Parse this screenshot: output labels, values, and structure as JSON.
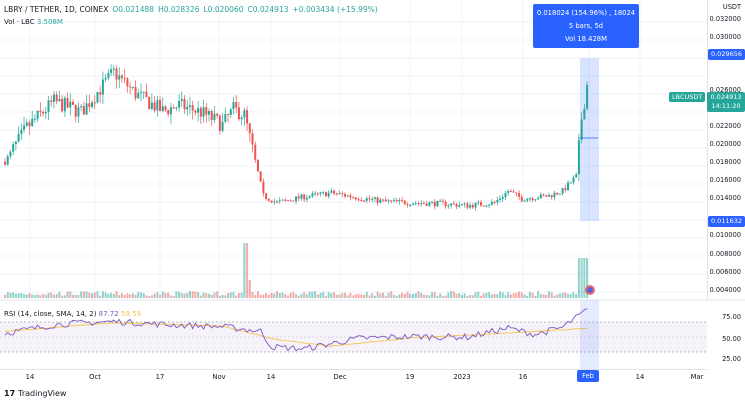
{
  "legend": {
    "symbol": "LBRY / TETHER, 1D, COINEX",
    "open": "O0.021488",
    "high": "H0.028326",
    "low": "L0.020060",
    "close": "C0.024913",
    "change": "+0.003434 (+15.99%)"
  },
  "volume": {
    "label": "Vol · LBC",
    "value": "3.508M"
  },
  "price_axis": {
    "currency": "USDT",
    "labels": [
      "0.032000",
      "0.030000",
      "0.029656",
      "0.026000",
      "0.024000",
      "0.022000",
      "0.020000",
      "0.018000",
      "0.016000",
      "0.014000",
      "0.011632",
      "0.010000",
      "0.008000",
      "0.006000",
      "0.004000"
    ]
  },
  "badges": {
    "top": "0.029656",
    "symbol": "LBCUSDT",
    "last_price": "0.024913",
    "countdown": "14:11:20",
    "bottom": "0.011632"
  },
  "tooltip": {
    "line1": "0.018024 (154.96%) , 18024",
    "line2": "5 bars, 5d",
    "line3": "Vol 18.428M"
  },
  "rsi": {
    "label": "RSI (14, close, SMA, 14, 2)",
    "rsi_value": "87.72",
    "sma_value": "59.59",
    "axis": [
      "75.00",
      "50.00",
      "25.00"
    ]
  },
  "time_axis": {
    "labels": [
      "14",
      "Oct",
      "17",
      "Nov",
      "14",
      "Dec",
      "19",
      "2023",
      "16",
      "Feb",
      "14",
      "Mar"
    ],
    "highlight": "Feb"
  },
  "brand": {
    "name": "TradingView"
  },
  "colors": {
    "up": "#26a69a",
    "down": "#ef5350",
    "rsi": "#7e57c2",
    "rsi_sma": "#f7c548",
    "accent": "#2962ff"
  },
  "chart_data": {
    "type": "candlestick",
    "title": "LBRY / TETHER, 1D, COINEX",
    "ylim": [
      0.003,
      0.033
    ],
    "trend": [
      [
        0,
        0.017
      ],
      [
        8,
        0.0205
      ],
      [
        18,
        0.0232
      ],
      [
        28,
        0.0221
      ],
      [
        40,
        0.0262
      ],
      [
        48,
        0.024
      ],
      [
        58,
        0.0222
      ],
      [
        64,
        0.0228
      ],
      [
        72,
        0.0221
      ],
      [
        80,
        0.0208
      ],
      [
        84,
        0.0224
      ],
      [
        88,
        0.0218
      ],
      [
        95,
        0.0135
      ],
      [
        100,
        0.0128
      ],
      [
        110,
        0.0134
      ],
      [
        120,
        0.0138
      ],
      [
        130,
        0.0133
      ],
      [
        140,
        0.0129
      ],
      [
        150,
        0.0128
      ],
      [
        160,
        0.0127
      ],
      [
        170,
        0.0125
      ],
      [
        180,
        0.0128
      ],
      [
        185,
        0.014
      ],
      [
        190,
        0.0132
      ],
      [
        200,
        0.0135
      ],
      [
        205,
        0.014
      ],
      [
        210,
        0.0155
      ],
      [
        212,
        0.0215
      ],
      [
        214,
        0.0249
      ]
    ],
    "rsi_trend": [
      [
        0,
        52
      ],
      [
        20,
        66
      ],
      [
        40,
        70
      ],
      [
        60,
        65
      ],
      [
        80,
        62
      ],
      [
        94,
        55
      ],
      [
        98,
        31
      ],
      [
        110,
        28
      ],
      [
        130,
        44
      ],
      [
        150,
        47
      ],
      [
        170,
        46
      ],
      [
        185,
        60
      ],
      [
        195,
        50
      ],
      [
        205,
        61
      ],
      [
        214,
        87.72
      ]
    ],
    "rsi_sma_trend": [
      [
        0,
        55
      ],
      [
        40,
        68
      ],
      [
        80,
        63
      ],
      [
        100,
        42
      ],
      [
        120,
        32
      ],
      [
        150,
        45
      ],
      [
        180,
        51
      ],
      [
        214,
        59.59
      ]
    ]
  }
}
